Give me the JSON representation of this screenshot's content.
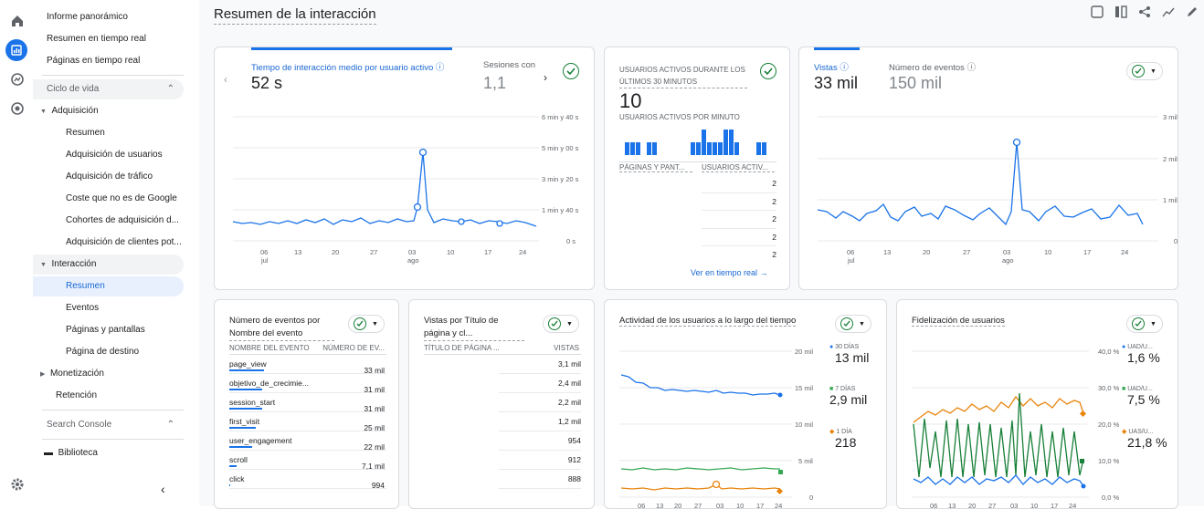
{
  "nav_icons": [
    "home-icon",
    "reports-icon",
    "explore-icon",
    "advertising-icon",
    "settings-icon"
  ],
  "sidebar": {
    "top": [
      "Informe panorámico",
      "Resumen en tiempo real",
      "Páginas en tiempo real"
    ],
    "lifecycle": "Ciclo de vida",
    "acquisition": "Adquisición",
    "acq_items": [
      "Resumen",
      "Adquisición de usuarios",
      "Adquisición de tráfico",
      "Coste que no es de Google",
      "Cohortes de adquisición d...",
      "Adquisición de clientes pot..."
    ],
    "engagement": "Interacción",
    "eng_items": [
      "Resumen",
      "Eventos",
      "Páginas y pantallas",
      "Página de destino"
    ],
    "monetization": "Monetización",
    "retention": "Retención",
    "search_console": "Search Console",
    "library": "Biblioteca"
  },
  "page_title": "Resumen de la interacción",
  "card1": {
    "metric1_label": "Tiempo de interacción medio por usuario activo",
    "metric1_value": "52 s",
    "metric2_label": "Sesiones con",
    "metric2_value": "1,1",
    "yticks": [
      "6 min y 40 s",
      "5 min y 00 s",
      "3 min y 20 s",
      "1 min y 40 s",
      "0 s"
    ],
    "xticks": [
      "06",
      "13",
      "20",
      "27",
      "03",
      "10",
      "17",
      "24"
    ],
    "month1": "jul",
    "month2": "ago"
  },
  "card2": {
    "header": "USUARIOS ACTIVOS DURANTE LOS ÚLTIMOS 30 MINUTOS",
    "value": "10",
    "sub": "USUARIOS ACTIVOS POR MINUTO",
    "bars": [
      1,
      1,
      1,
      0,
      1,
      1,
      0,
      0,
      0,
      0,
      0,
      0,
      1,
      1,
      2,
      1,
      1,
      1,
      2,
      2,
      1,
      0,
      0,
      0,
      1,
      1
    ],
    "col1": "PÁGINAS Y PANT...",
    "col2": "USUARIOS ACTIV...",
    "rows": [
      "2",
      "2",
      "2",
      "2",
      "2"
    ],
    "link": "Ver en tiempo real"
  },
  "card3": {
    "metric1_label": "Vistas",
    "metric1_value": "33 mil",
    "metric2_label": "Número de eventos",
    "metric2_value": "150 mil",
    "yticks": [
      "3 mil",
      "2 mil",
      "1 mil",
      "0"
    ]
  },
  "card4": {
    "title": "Número de eventos por Nombre del evento",
    "col1": "NOMBRE DEL EVENTO",
    "col2": "NÚMERO DE EV...",
    "rows": [
      {
        "name": "page_view",
        "value": "33 mil",
        "bar": 1.0
      },
      {
        "name": "objetivo_de_crecimie...",
        "value": "31 mil",
        "bar": 0.94
      },
      {
        "name": "session_start",
        "value": "31 mil",
        "bar": 0.94
      },
      {
        "name": "first_visit",
        "value": "25 mil",
        "bar": 0.76
      },
      {
        "name": "user_engagement",
        "value": "22 mil",
        "bar": 0.67
      },
      {
        "name": "scroll",
        "value": "7,1 mil",
        "bar": 0.22
      },
      {
        "name": "click",
        "value": "994",
        "bar": 0.03
      }
    ]
  },
  "card5": {
    "title": "Vistas por Título de página y cl...",
    "col1": "TÍTULO DE PÁGINA ...",
    "col2": "VISTAS",
    "rows": [
      "3,1 mil",
      "2,4 mil",
      "2,2 mil",
      "1,2 mil",
      "954",
      "912",
      "888"
    ]
  },
  "card6": {
    "title": "Actividad de los usuarios a lo largo del tiempo",
    "yticks": [
      "20 mil",
      "15 mil",
      "10 mil",
      "5 mil",
      "0"
    ],
    "legend": [
      {
        "label": "30 DÍAS",
        "value": "13 mil",
        "color": "#1a73e8"
      },
      {
        "label": "7 DÍAS",
        "value": "2,9 mil",
        "color": "#34a853"
      },
      {
        "label": "1 DÍA",
        "value": "218",
        "color": "#e8830c"
      }
    ]
  },
  "card7": {
    "title": "Fidelización de usuarios",
    "yticks": [
      "40,0 %",
      "30,0 %",
      "20,0 %",
      "10,0 %",
      "0,0 %"
    ],
    "legend": [
      {
        "label": "UAD/U...",
        "value": "1,6 %",
        "color": "#1a73e8"
      },
      {
        "label": "UAD/U...",
        "value": "7,5 %",
        "color": "#34a853"
      },
      {
        "label": "UAS/U...",
        "value": "21,8 %",
        "color": "#e8830c"
      }
    ]
  },
  "xticks_small": [
    "06",
    "13",
    "20",
    "27",
    "03",
    "10",
    "17",
    "24"
  ]
}
